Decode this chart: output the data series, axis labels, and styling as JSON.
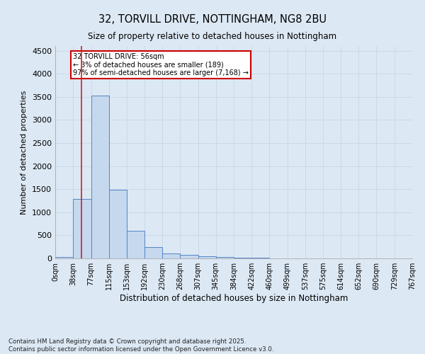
{
  "title_line1": "32, TORVILL DRIVE, NOTTINGHAM, NG8 2BU",
  "title_line2": "Size of property relative to detached houses in Nottingham",
  "xlabel": "Distribution of detached houses by size in Nottingham",
  "ylabel": "Number of detached properties",
  "bin_edges": [
    0,
    38,
    77,
    115,
    153,
    192,
    230,
    268,
    307,
    345,
    384,
    422,
    460,
    499,
    537,
    575,
    614,
    652,
    690,
    729,
    767
  ],
  "bar_heights": [
    30,
    1290,
    3530,
    1490,
    600,
    250,
    110,
    70,
    50,
    30,
    15,
    10,
    5,
    3,
    2,
    1,
    1,
    1,
    0,
    0
  ],
  "bar_color": "#c5d8ee",
  "bar_edge_color": "#5585c5",
  "grid_color": "#c8d8e8",
  "property_size": 56,
  "red_line_color": "#cc2222",
  "annotation_text": "32 TORVILL DRIVE: 56sqm\n← 3% of detached houses are smaller (189)\n97% of semi-detached houses are larger (7,168) →",
  "annotation_box_color": "#cc0000",
  "ylim": [
    0,
    4600
  ],
  "yticks": [
    0,
    500,
    1000,
    1500,
    2000,
    2500,
    3000,
    3500,
    4000,
    4500
  ],
  "footer_line1": "Contains HM Land Registry data © Crown copyright and database right 2025.",
  "footer_line2": "Contains public sector information licensed under the Open Government Licence v3.0.",
  "bg_color": "#dce8f4",
  "plot_bg_color": "#dce8f4"
}
